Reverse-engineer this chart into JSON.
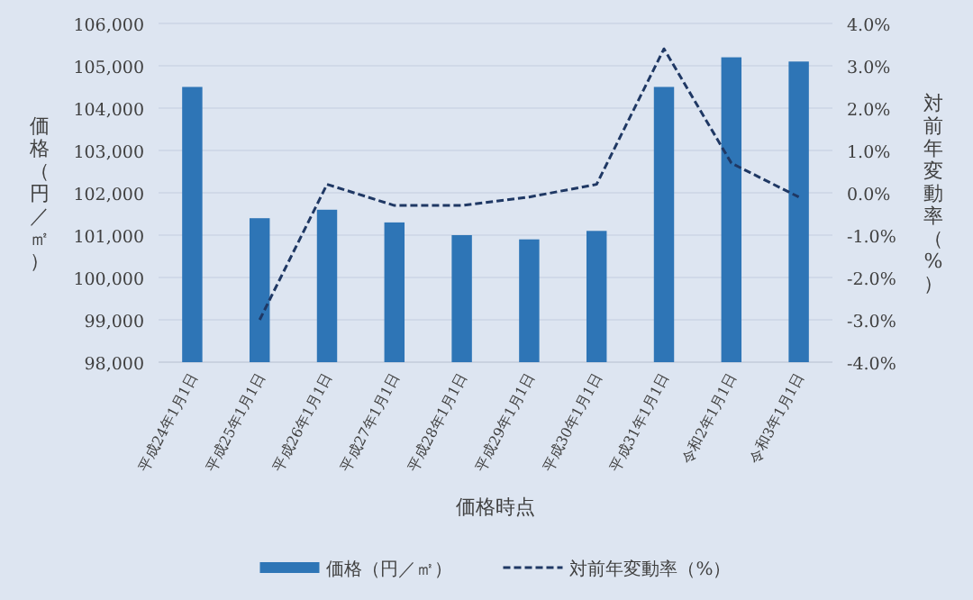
{
  "chart_data": {
    "type": "bar",
    "xlabel": "価格時点",
    "ylabel": "価格（円／㎡）",
    "y2label": "対前年変動率（%）",
    "categories": [
      "平成24年1月1日",
      "平成25年1月1日",
      "平成26年1月1日",
      "平成27年1月1日",
      "平成28年1月1日",
      "平成29年1月1日",
      "平成30年1月1日",
      "平成31年1月1日",
      "令和2年1月1日",
      "令和3年1月1日"
    ],
    "series": [
      {
        "name": "価格（円／㎡）",
        "color": "#2e75b6",
        "values": [
          104500,
          101400,
          101600,
          101300,
          101000,
          100900,
          101100,
          104500,
          105200,
          105100
        ]
      },
      {
        "name": "対前年変動率（%）",
        "type": "line",
        "axis": "y2",
        "color": "#1f3864",
        "line_style": "dashed",
        "values": [
          null,
          -3.0,
          0.2,
          -0.3,
          -0.3,
          -0.1,
          0.2,
          3.4,
          0.7,
          -0.1
        ]
      }
    ],
    "ylim": [
      98000,
      106000
    ],
    "yticks": [
      {
        "value": 98000,
        "label": "98,000"
      },
      {
        "value": 99000,
        "label": "99,000"
      },
      {
        "value": 100000,
        "label": "100,000"
      },
      {
        "value": 101000,
        "label": "101,000"
      },
      {
        "value": 102000,
        "label": "102,000"
      },
      {
        "value": 103000,
        "label": "103,000"
      },
      {
        "value": 104000,
        "label": "104,000"
      },
      {
        "value": 105000,
        "label": "105,000"
      },
      {
        "value": 106000,
        "label": "106,000"
      }
    ],
    "y2lim": [
      -4.0,
      4.0
    ],
    "y2ticks": [
      {
        "value": -4,
        "label": "-4.0%"
      },
      {
        "value": -3,
        "label": "-3.0%"
      },
      {
        "value": -2,
        "label": "-2.0%"
      },
      {
        "value": -1,
        "label": "-1.0%"
      },
      {
        "value": 0,
        "label": "0.0%"
      },
      {
        "value": 1,
        "label": "1.0%"
      },
      {
        "value": 2,
        "label": "2.0%"
      },
      {
        "value": 3,
        "label": "3.0%"
      },
      {
        "value": 4,
        "label": "4.0%"
      }
    ],
    "grid": "y",
    "legend": "bottom"
  }
}
